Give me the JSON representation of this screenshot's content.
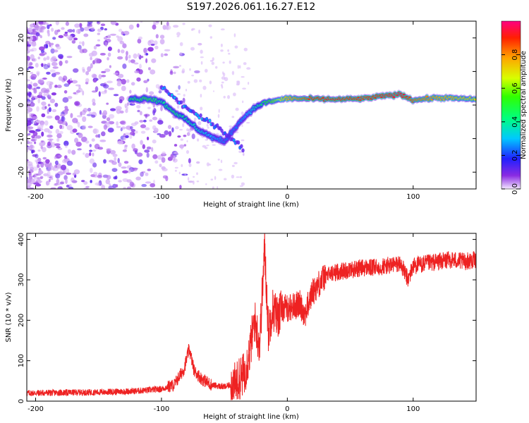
{
  "title": "S197.2026.061.16.27.E12",
  "chart_data": [
    {
      "type": "heatmap",
      "xlabel": "Height of straight line (km)",
      "ylabel": "Frequency (Hz)",
      "xlim": [
        -207,
        150
      ],
      "ylim": [
        -25,
        25
      ],
      "xticks": [
        -200,
        -100,
        0,
        100
      ],
      "yticks": [
        -20,
        -10,
        0,
        10,
        20
      ],
      "grid": false,
      "colorbar": {
        "label": "Normalized spectral amplitude",
        "range": [
          0,
          1
        ],
        "ticks": [
          0,
          0.2,
          0.4,
          0.6,
          0.8
        ],
        "tick_labels": [
          "0.0",
          "0.2",
          "0.4",
          "0.6",
          "0.8"
        ]
      },
      "band": [
        {
          "x": -120,
          "freq": 1.8,
          "amp": 0.45
        },
        {
          "x": -110,
          "freq": 2.0,
          "amp": 0.5
        },
        {
          "x": -100,
          "freq": 1.0,
          "amp": 0.4
        },
        {
          "x": -90,
          "freq": -2.0,
          "amp": 0.45
        },
        {
          "x": -80,
          "freq": -4.5,
          "amp": 0.4
        },
        {
          "x": -70,
          "freq": -7.5,
          "amp": 0.35
        },
        {
          "x": -60,
          "freq": -9.5,
          "amp": 0.3
        },
        {
          "x": -50,
          "freq": -11.0,
          "amp": 0.25
        },
        {
          "x": -40,
          "freq": -6.0,
          "amp": 0.25
        },
        {
          "x": -30,
          "freq": -2.0,
          "amp": 0.3
        },
        {
          "x": -20,
          "freq": 0.5,
          "amp": 0.45
        },
        {
          "x": -10,
          "freq": 1.3,
          "amp": 0.6
        },
        {
          "x": 0,
          "freq": 2.0,
          "amp": 0.75
        },
        {
          "x": 20,
          "freq": 1.8,
          "amp": 0.9
        },
        {
          "x": 40,
          "freq": 1.7,
          "amp": 0.92
        },
        {
          "x": 60,
          "freq": 1.9,
          "amp": 0.88
        },
        {
          "x": 75,
          "freq": 2.6,
          "amp": 0.92
        },
        {
          "x": 90,
          "freq": 3.2,
          "amp": 0.95
        },
        {
          "x": 100,
          "freq": 1.5,
          "amp": 0.85
        },
        {
          "x": 120,
          "freq": 2.2,
          "amp": 0.78
        },
        {
          "x": 150,
          "freq": 1.7,
          "amp": 0.72
        }
      ],
      "secondary_branch": [
        {
          "x": -100,
          "freq": 5.5
        },
        {
          "x": -85,
          "freq": 0.5
        },
        {
          "x": -70,
          "freq": -3.5
        },
        {
          "x": -55,
          "freq": -6.5
        },
        {
          "x": -45,
          "freq": -10.0
        },
        {
          "x": -35,
          "freq": -13.0
        }
      ]
    },
    {
      "type": "line",
      "xlabel": "Height of straight line (km)",
      "ylabel": "SNR (10 * v/v)",
      "xlim": [
        -207,
        150
      ],
      "ylim": [
        0,
        415
      ],
      "xticks": [
        -200,
        -100,
        0,
        100
      ],
      "yticks": [
        0,
        100,
        200,
        300,
        400
      ],
      "color": "#ee2222",
      "grid": false,
      "x": [
        -207,
        -180,
        -150,
        -120,
        -100,
        -90,
        -82,
        -78,
        -74,
        -68,
        -60,
        -50,
        -40,
        -34,
        -30,
        -26,
        -22,
        -18,
        -15,
        -12,
        -8,
        -4,
        0,
        5,
        10,
        14,
        20,
        25,
        30,
        40,
        50,
        60,
        70,
        80,
        90,
        96,
        100,
        110,
        120,
        130,
        140,
        150
      ],
      "y": [
        20,
        21,
        22,
        25,
        30,
        40,
        80,
        130,
        75,
        55,
        40,
        35,
        45,
        70,
        120,
        200,
        140,
        380,
        170,
        230,
        210,
        230,
        230,
        235,
        240,
        215,
        270,
        290,
        310,
        320,
        325,
        330,
        330,
        335,
        340,
        300,
        335,
        340,
        345,
        350,
        345,
        350
      ]
    }
  ]
}
